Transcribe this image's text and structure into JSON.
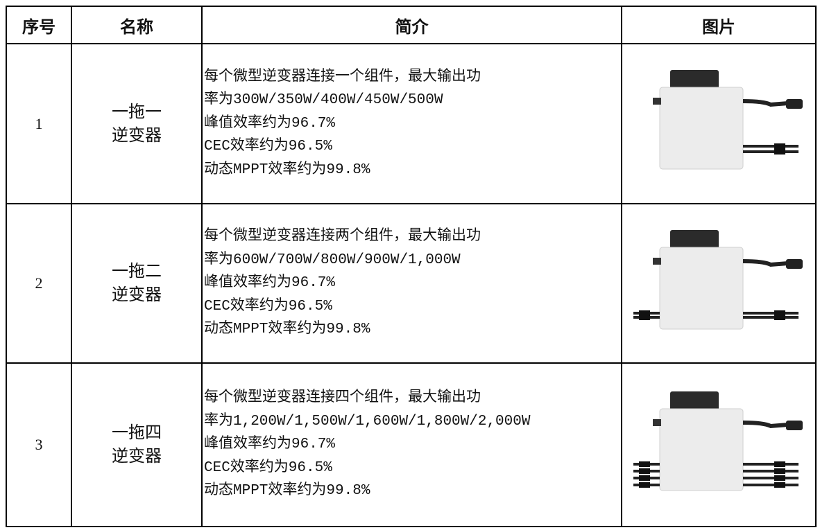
{
  "table": {
    "columns": [
      "序号",
      "名称",
      "简介",
      "图片"
    ],
    "rows": [
      {
        "index": "1",
        "name": [
          "一拖一",
          "逆变器"
        ],
        "description": [
          "每个微型逆变器连接一个组件，最大输出功",
          "率为300W/350W/400W/450W/500W",
          "峰值效率约为96.7%",
          "CEC效率约为96.5%",
          "动态MPPT效率约为99.8%"
        ]
      },
      {
        "index": "2",
        "name": [
          "一拖二",
          "逆变器"
        ],
        "description": [
          "每个微型逆变器连接两个组件，最大输出功",
          "率为600W/700W/800W/900W/1,000W",
          "峰值效率约为96.7%",
          "CEC效率约为96.5%",
          "动态MPPT效率约为99.8%"
        ]
      },
      {
        "index": "3",
        "name": [
          "一拖四",
          "逆变器"
        ],
        "description": [
          "每个微型逆变器连接四个组件，最大输出功",
          "率为1,200W/1,500W/1,600W/1,800W/2,000W",
          "峰值效率约为96.7%",
          "CEC效率约为96.5%",
          "动态MPPT效率约为99.8%"
        ]
      }
    ]
  }
}
